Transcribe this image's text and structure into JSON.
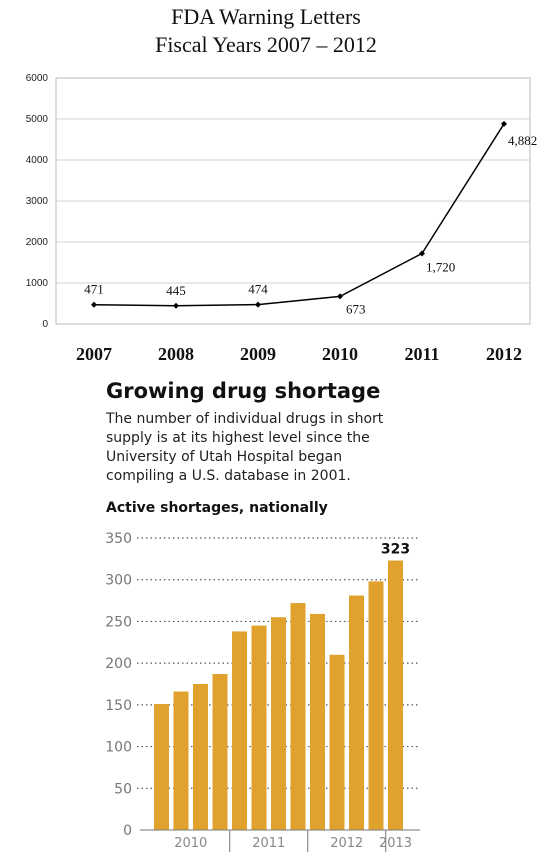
{
  "chart_data": [
    {
      "type": "line",
      "title": "FDA Warning Letters",
      "subtitle": "Fiscal Years 2007 – 2012",
      "x": [
        "2007",
        "2008",
        "2009",
        "2010",
        "2011",
        "2012"
      ],
      "values": [
        471,
        445,
        474,
        673,
        1720,
        4882
      ],
      "data_labels": [
        "471",
        "445",
        "474",
        "673",
        "1,720",
        "4,882"
      ],
      "ylim": [
        0,
        6000
      ],
      "yticks": [
        "0",
        "1000",
        "2000",
        "3000",
        "4000",
        "5000",
        "6000"
      ],
      "grid": true,
      "color": "#000000"
    },
    {
      "type": "bar",
      "title": "Growing drug shortage",
      "subtitle": "The number of individual drugs in short supply is at its highest level since the University of Utah Hospital began compiling a U.S. database in 2001.",
      "subtitle_lines": [
        "The number of individual drugs in short",
        "supply is at its highest level since the",
        "University of Utah Hospital began",
        "compiling a U.S. database in 2001."
      ],
      "ylabel": "Active shortages, nationally",
      "values": [
        151,
        166,
        175,
        187,
        238,
        245,
        255,
        272,
        259,
        210,
        281,
        298,
        323
      ],
      "year_groups": [
        {
          "label": "2010",
          "count": 4
        },
        {
          "label": "2011",
          "count": 4
        },
        {
          "label": "2012",
          "count": 4
        },
        {
          "label": "2013",
          "count": 1
        }
      ],
      "annotation": {
        "index": 12,
        "text": "323"
      },
      "ylim": [
        0,
        350
      ],
      "yticks": [
        "0",
        "50",
        "100",
        "150",
        "200",
        "250",
        "300",
        "350"
      ],
      "grid": true,
      "color": "#e0a22c"
    }
  ]
}
